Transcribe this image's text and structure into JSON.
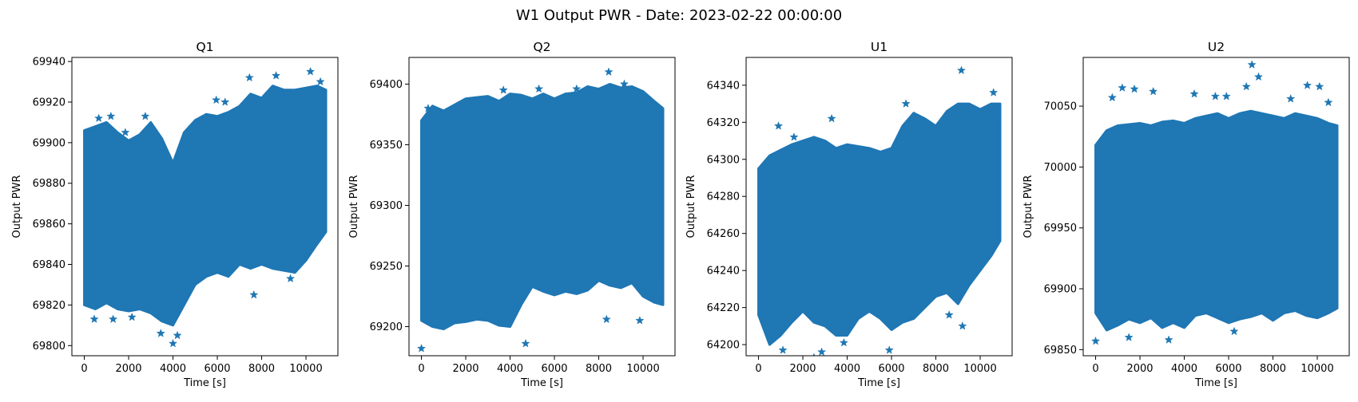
{
  "figure": {
    "suptitle": "W1 Output PWR - Date: 2023-02-22 00:00:00",
    "marker_color": "#1f77b4"
  },
  "chart_data": [
    {
      "type": "scatter",
      "title": "Q1",
      "xlabel": "Time [s]",
      "ylabel": "Output PWR",
      "marker": "star",
      "xlim": [
        -560,
        11440
      ],
      "ylim": [
        69795,
        69942
      ],
      "xticks": [
        0,
        2000,
        4000,
        6000,
        8000,
        10000
      ],
      "yticks": [
        69800,
        69820,
        69840,
        69860,
        69880,
        69900,
        69920,
        69940
      ],
      "band": {
        "x": [
          0,
          500,
          1000,
          1500,
          2000,
          2500,
          3000,
          3500,
          4000,
          4500,
          5000,
          5500,
          6000,
          6500,
          7000,
          7500,
          8000,
          8500,
          9000,
          9500,
          10000,
          10500,
          10900
        ],
        "upper": [
          69906,
          69908,
          69910,
          69905,
          69901,
          69904,
          69910,
          69902,
          69890,
          69905,
          69911,
          69914,
          69913,
          69915,
          69918,
          69924,
          69922,
          69928,
          69926,
          69926,
          69927,
          69928,
          69926
        ],
        "lower": [
          69820,
          69818,
          69821,
          69818,
          69817,
          69818,
          69816,
          69812,
          69810,
          69820,
          69830,
          69834,
          69836,
          69834,
          69840,
          69838,
          69840,
          69838,
          69837,
          69836,
          69842,
          69850,
          69856
        ]
      },
      "outliers": [
        {
          "x": 650,
          "y": 69912
        },
        {
          "x": 1200,
          "y": 69913
        },
        {
          "x": 1850,
          "y": 69905
        },
        {
          "x": 2750,
          "y": 69913
        },
        {
          "x": 5950,
          "y": 69921
        },
        {
          "x": 6350,
          "y": 69920
        },
        {
          "x": 7450,
          "y": 69932
        },
        {
          "x": 8650,
          "y": 69933
        },
        {
          "x": 10200,
          "y": 69935
        },
        {
          "x": 10650,
          "y": 69930
        },
        {
          "x": 450,
          "y": 69813
        },
        {
          "x": 1300,
          "y": 69813
        },
        {
          "x": 2150,
          "y": 69814
        },
        {
          "x": 3450,
          "y": 69806
        },
        {
          "x": 4000,
          "y": 69801
        },
        {
          "x": 4200,
          "y": 69805
        },
        {
          "x": 7650,
          "y": 69825
        },
        {
          "x": 9300,
          "y": 69833
        }
      ]
    },
    {
      "type": "scatter",
      "title": "Q2",
      "xlabel": "Time [s]",
      "ylabel": "Output PWR",
      "marker": "star",
      "xlim": [
        -560,
        11440
      ],
      "ylim": [
        69176,
        69422
      ],
      "xticks": [
        0,
        2000,
        4000,
        6000,
        8000,
        10000
      ],
      "yticks": [
        69200,
        69250,
        69300,
        69350,
        69400
      ],
      "band": {
        "x": [
          0,
          500,
          1000,
          1500,
          2000,
          2500,
          3000,
          3500,
          4000,
          4500,
          5000,
          5500,
          6000,
          6500,
          7000,
          7500,
          8000,
          8500,
          9000,
          9500,
          10000,
          10500,
          10900
        ],
        "upper": [
          69370,
          69382,
          69378,
          69383,
          69388,
          69389,
          69390,
          69386,
          69392,
          69391,
          69388,
          69392,
          69388,
          69392,
          69393,
          69398,
          69396,
          69400,
          69397,
          69398,
          69394,
          69386,
          69380
        ],
        "lower": [
          69205,
          69200,
          69198,
          69203,
          69204,
          69206,
          69205,
          69201,
          69200,
          69218,
          69233,
          69229,
          69226,
          69229,
          69227,
          69230,
          69238,
          69234,
          69232,
          69236,
          69225,
          69220,
          69218
        ]
      },
      "outliers": [
        {
          "x": 300,
          "y": 69380
        },
        {
          "x": 3700,
          "y": 69395
        },
        {
          "x": 5300,
          "y": 69396
        },
        {
          "x": 7000,
          "y": 69396
        },
        {
          "x": 8450,
          "y": 69410
        },
        {
          "x": 9150,
          "y": 69400
        },
        {
          "x": 10450,
          "y": 69381
        },
        {
          "x": 0,
          "y": 69182
        },
        {
          "x": 4700,
          "y": 69186
        },
        {
          "x": 8350,
          "y": 69206
        },
        {
          "x": 9850,
          "y": 69205
        }
      ]
    },
    {
      "type": "scatter",
      "title": "U1",
      "xlabel": "Time [s]",
      "ylabel": "Output PWR",
      "marker": "star",
      "xlim": [
        -560,
        11440
      ],
      "ylim": [
        64194,
        64355
      ],
      "xticks": [
        0,
        2000,
        4000,
        6000,
        8000,
        10000
      ],
      "yticks": [
        64200,
        64220,
        64240,
        64260,
        64280,
        64300,
        64320,
        64340
      ],
      "band": {
        "x": [
          0,
          500,
          1000,
          1500,
          2000,
          2500,
          3000,
          3500,
          4000,
          4500,
          5000,
          5500,
          6000,
          6500,
          7000,
          7500,
          8000,
          8500,
          9000,
          9500,
          10000,
          10500,
          10900
        ],
        "upper": [
          64295,
          64302,
          64305,
          64308,
          64310,
          64312,
          64310,
          64306,
          64308,
          64307,
          64306,
          64304,
          64306,
          64318,
          64325,
          64322,
          64318,
          64326,
          64330,
          64330,
          64327,
          64330,
          64330
        ],
        "lower": [
          64216,
          64200,
          64205,
          64212,
          64218,
          64212,
          64210,
          64205,
          64205,
          64214,
          64218,
          64214,
          64208,
          64212,
          64214,
          64220,
          64226,
          64228,
          64222,
          64232,
          64240,
          64248,
          64256
        ]
      },
      "outliers": [
        {
          "x": 900,
          "y": 64318
        },
        {
          "x": 1600,
          "y": 64312
        },
        {
          "x": 3300,
          "y": 64322
        },
        {
          "x": 6650,
          "y": 64330
        },
        {
          "x": 9150,
          "y": 64348
        },
        {
          "x": 10600,
          "y": 64336
        },
        {
          "x": 1100,
          "y": 64197
        },
        {
          "x": 2500,
          "y": 64193
        },
        {
          "x": 2850,
          "y": 64196
        },
        {
          "x": 3850,
          "y": 64201
        },
        {
          "x": 5900,
          "y": 64197
        },
        {
          "x": 8600,
          "y": 64216
        },
        {
          "x": 9200,
          "y": 64210
        }
      ]
    },
    {
      "type": "scatter",
      "title": "U2",
      "xlabel": "Time [s]",
      "ylabel": "Output PWR",
      "marker": "star",
      "xlim": [
        -560,
        11440
      ],
      "ylim": [
        69845,
        70090
      ],
      "xticks": [
        0,
        2000,
        4000,
        6000,
        8000,
        10000
      ],
      "yticks": [
        69850,
        69900,
        69950,
        70000,
        70050
      ],
      "band": {
        "x": [
          0,
          500,
          1000,
          1500,
          2000,
          2500,
          3000,
          3500,
          4000,
          4500,
          5000,
          5500,
          6000,
          6500,
          7000,
          7500,
          8000,
          8500,
          9000,
          9500,
          10000,
          10500,
          10900
        ],
        "upper": [
          70018,
          70030,
          70034,
          70035,
          70036,
          70034,
          70037,
          70038,
          70036,
          70040,
          70042,
          70044,
          70040,
          70044,
          70046,
          70044,
          70042,
          70040,
          70044,
          70042,
          70040,
          70036,
          70034
        ],
        "lower": [
          69880,
          69866,
          69870,
          69875,
          69872,
          69876,
          69868,
          69872,
          69868,
          69878,
          69880,
          69876,
          69872,
          69875,
          69877,
          69880,
          69874,
          69880,
          69882,
          69878,
          69876,
          69880,
          69884
        ]
      },
      "outliers": [
        {
          "x": 750,
          "y": 70057
        },
        {
          "x": 1200,
          "y": 70065
        },
        {
          "x": 1750,
          "y": 70064
        },
        {
          "x": 2600,
          "y": 70062
        },
        {
          "x": 4450,
          "y": 70060
        },
        {
          "x": 5400,
          "y": 70058
        },
        {
          "x": 5900,
          "y": 70058
        },
        {
          "x": 6800,
          "y": 70066
        },
        {
          "x": 7050,
          "y": 70084
        },
        {
          "x": 7350,
          "y": 70074
        },
        {
          "x": 8800,
          "y": 70056
        },
        {
          "x": 9550,
          "y": 70067
        },
        {
          "x": 10100,
          "y": 70066
        },
        {
          "x": 10500,
          "y": 70053
        },
        {
          "x": 0,
          "y": 69857
        },
        {
          "x": 3300,
          "y": 69858
        },
        {
          "x": 6250,
          "y": 69865
        },
        {
          "x": 1500,
          "y": 69860
        }
      ]
    }
  ]
}
